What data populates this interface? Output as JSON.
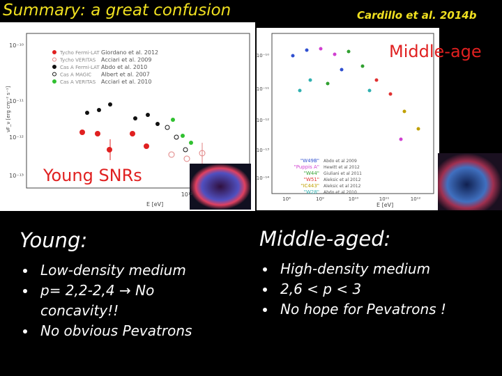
{
  "title": "Summary: a great confusion",
  "citation": "Cardillo et al. 2014b",
  "left_plot": {
    "caption": "Young SNRs",
    "y_label": "νF_ν [erg cm⁻² s⁻¹]",
    "x_label": "E [eV]",
    "y_ticks": [
      "10⁻¹⁰",
      "10⁻¹¹",
      "10⁻¹²",
      "10⁻¹³"
    ],
    "x_ticks": [
      "10¹²"
    ],
    "legend": [
      {
        "label": "Tycho Fermi-LAT",
        "ref": "Giordano et al. 2012",
        "color": "#e02020",
        "open": false
      },
      {
        "label": "Tycho VERITAS",
        "ref": "Acciari et al. 2009",
        "color": "#e08080",
        "open": true
      },
      {
        "label": "Cas A Fermi-LAT",
        "ref": "Abdo et al. 2010",
        "color": "#111111",
        "open": false
      },
      {
        "label": "Cas A MAGIC",
        "ref": "Albert et al. 2007",
        "color": "#111111",
        "open": true
      },
      {
        "label": "Cas A VERITAS",
        "ref": "Acciari et al. 2010",
        "color": "#30c030",
        "open": false
      }
    ]
  },
  "right_plot": {
    "caption": "Middle-age",
    "x_label": "E [eV]",
    "y_ticks": [
      "10⁻¹⁰",
      "10⁻¹¹",
      "10⁻¹²",
      "10⁻¹³",
      "10⁻¹⁴"
    ],
    "x_ticks": [
      "10⁸",
      "10⁹",
      "10¹⁰",
      "10¹¹",
      "10¹²"
    ],
    "legend": [
      {
        "label": "\"W49B\"",
        "ref": "Abdo et al 2009",
        "color": "#3050d0"
      },
      {
        "label": "\"Puppis A\"",
        "ref": "Hewitt et al 2012",
        "color": "#d040d0"
      },
      {
        "label": "\"W44\"",
        "ref": "Giuliani et al 2011",
        "color": "#30a030"
      },
      {
        "label": "\"W51\"",
        "ref": "Aleksic et al 2012",
        "color": "#e03030"
      },
      {
        "label": "\"IC443\"",
        "ref": "Aleksic et al 2012",
        "color": "#c0a000"
      },
      {
        "label": "\"W28\"",
        "ref": "Abdo et al 2010",
        "color": "#30b0b0"
      }
    ]
  },
  "sections": [
    {
      "heading": "Young:",
      "bullets": [
        "Low-density medium",
        "p= 2,2-2,4 → No concavity!!",
        "No obvious Pevatrons"
      ]
    },
    {
      "heading": "Middle-aged:",
      "bullets": [
        "High-density medium",
        "2,6 < p < 3",
        "No hope for Pevatrons !"
      ]
    }
  ]
}
